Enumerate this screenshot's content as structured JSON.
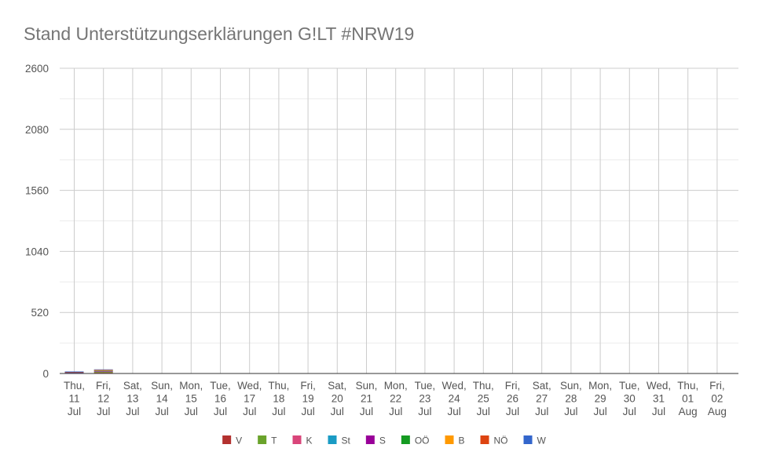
{
  "chart_data": {
    "type": "bar",
    "stacked": true,
    "title": "Stand Unterstützungserklärungen G!LT #NRW19",
    "xlabel": "",
    "ylabel": "",
    "ylim": [
      0,
      2600
    ],
    "yticks": [
      0,
      520,
      1040,
      1560,
      2080,
      2600
    ],
    "grid": true,
    "legend_position": "bottom",
    "categories": [
      [
        "Thu,",
        "11",
        "Jul"
      ],
      [
        "Fri,",
        "12",
        "Jul"
      ],
      [
        "Sat,",
        "13",
        "Jul"
      ],
      [
        "Sun,",
        "14",
        "Jul"
      ],
      [
        "Mon,",
        "15",
        "Jul"
      ],
      [
        "Tue,",
        "16",
        "Jul"
      ],
      [
        "Wed,",
        "17",
        "Jul"
      ],
      [
        "Thu,",
        "18",
        "Jul"
      ],
      [
        "Fri,",
        "19",
        "Jul"
      ],
      [
        "Sat,",
        "20",
        "Jul"
      ],
      [
        "Sun,",
        "21",
        "Jul"
      ],
      [
        "Mon,",
        "22",
        "Jul"
      ],
      [
        "Tue,",
        "23",
        "Jul"
      ],
      [
        "Wed,",
        "24",
        "Jul"
      ],
      [
        "Thu,",
        "25",
        "Jul"
      ],
      [
        "Fri,",
        "26",
        "Jul"
      ],
      [
        "Sat,",
        "27",
        "Jul"
      ],
      [
        "Sun,",
        "28",
        "Jul"
      ],
      [
        "Mon,",
        "29",
        "Jul"
      ],
      [
        "Tue,",
        "30",
        "Jul"
      ],
      [
        "Wed,",
        "31",
        "Jul"
      ],
      [
        "Thu,",
        "01",
        "Aug"
      ],
      [
        "Fri,",
        "02",
        "Aug"
      ]
    ],
    "series": [
      {
        "name": "V",
        "color": "#b3312f",
        "values": [
          3,
          6,
          0,
          0,
          0,
          0,
          0,
          0,
          0,
          0,
          0,
          0,
          0,
          0,
          0,
          0,
          0,
          0,
          0,
          0,
          0,
          0,
          0
        ]
      },
      {
        "name": "T",
        "color": "#6aa32b",
        "values": [
          3,
          8,
          0,
          0,
          0,
          0,
          0,
          0,
          0,
          0,
          0,
          0,
          0,
          0,
          0,
          0,
          0,
          0,
          0,
          0,
          0,
          0,
          0
        ]
      },
      {
        "name": "K",
        "color": "#d9457a",
        "values": [
          1,
          2,
          0,
          0,
          0,
          0,
          0,
          0,
          0,
          0,
          0,
          0,
          0,
          0,
          0,
          0,
          0,
          0,
          0,
          0,
          0,
          0,
          0
        ]
      },
      {
        "name": "St",
        "color": "#1a9bc4",
        "values": [
          2,
          4,
          0,
          0,
          0,
          0,
          0,
          0,
          0,
          0,
          0,
          0,
          0,
          0,
          0,
          0,
          0,
          0,
          0,
          0,
          0,
          0,
          0
        ]
      },
      {
        "name": "S",
        "color": "#990099",
        "values": [
          1,
          2,
          0,
          0,
          0,
          0,
          0,
          0,
          0,
          0,
          0,
          0,
          0,
          0,
          0,
          0,
          0,
          0,
          0,
          0,
          0,
          0,
          0
        ]
      },
      {
        "name": "OÖ",
        "color": "#159b22",
        "values": [
          3,
          5,
          0,
          0,
          0,
          0,
          0,
          0,
          0,
          0,
          0,
          0,
          0,
          0,
          0,
          0,
          0,
          0,
          0,
          0,
          0,
          0,
          0
        ]
      },
      {
        "name": "B",
        "color": "#ff9900",
        "values": [
          0,
          1,
          0,
          0,
          0,
          0,
          0,
          0,
          0,
          0,
          0,
          0,
          0,
          0,
          0,
          0,
          0,
          0,
          0,
          0,
          0,
          0,
          0
        ]
      },
      {
        "name": "NÖ",
        "color": "#dd4411",
        "values": [
          2,
          4,
          0,
          0,
          0,
          0,
          0,
          0,
          0,
          0,
          0,
          0,
          0,
          0,
          0,
          0,
          0,
          0,
          0,
          0,
          0,
          0,
          0
        ]
      },
      {
        "name": "W",
        "color": "#3366cc",
        "values": [
          2,
          3,
          0,
          0,
          0,
          0,
          0,
          0,
          0,
          0,
          0,
          0,
          0,
          0,
          0,
          0,
          0,
          0,
          0,
          0,
          0,
          0,
          0
        ]
      }
    ]
  }
}
